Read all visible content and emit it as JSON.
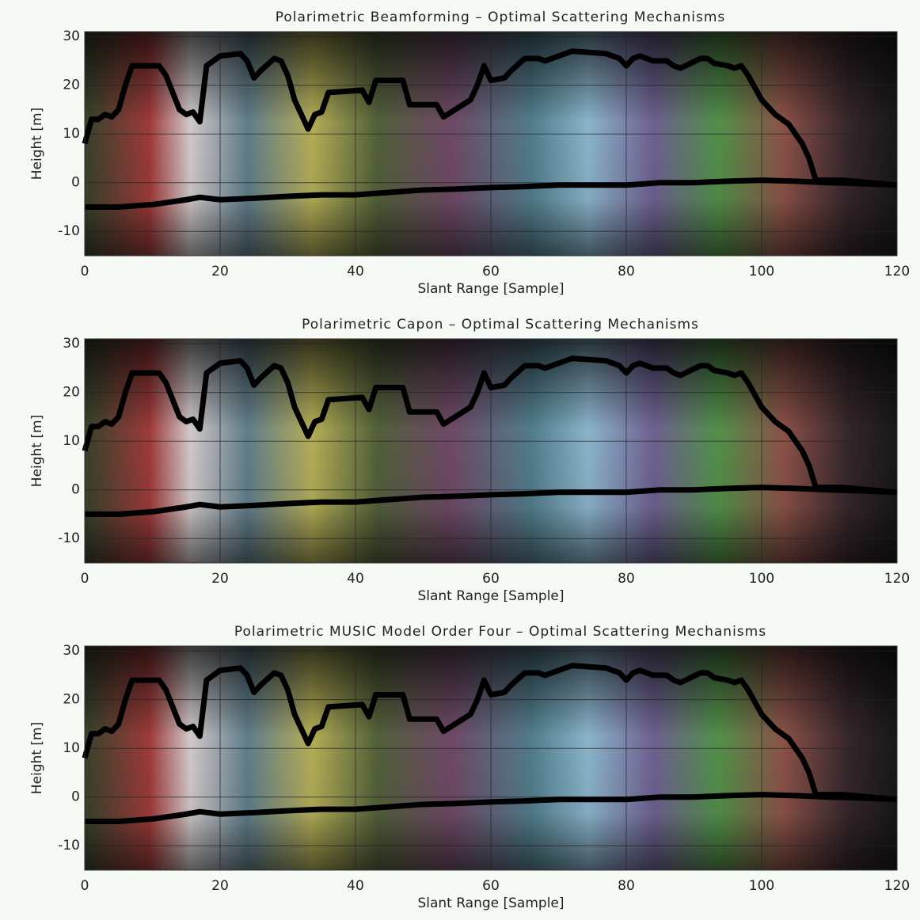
{
  "chart_data": [
    {
      "type": "line",
      "title": "Polarimetric Beamforming – Optimal Scattering Mechanisms",
      "xlabel": "Slant Range [Sample]",
      "ylabel": "Height [m]",
      "xlim": [
        0,
        120
      ],
      "ylim": [
        -15,
        31
      ],
      "xticks": [
        0,
        20,
        40,
        60,
        80,
        100,
        120
      ],
      "yticks": [
        -10,
        0,
        10,
        20,
        30
      ],
      "grid": true,
      "series": [
        {
          "color": "#000000",
          "x": [
            0,
            1,
            2,
            3,
            4,
            5,
            6,
            7,
            11,
            12,
            14,
            15,
            16,
            17,
            18,
            20,
            23,
            24,
            25,
            26,
            28,
            29,
            30,
            31,
            33,
            34,
            35,
            36,
            41,
            42,
            43,
            47,
            48,
            52,
            53,
            57,
            58,
            59,
            60,
            62,
            63,
            65,
            67,
            68,
            72,
            77,
            79,
            80,
            81,
            82,
            84,
            86,
            87,
            88,
            91,
            92,
            93,
            95,
            96,
            97,
            98,
            100,
            102,
            103,
            104,
            105,
            106,
            107,
            108,
            112,
            116,
            120
          ],
          "values": [
            8,
            13,
            13,
            14,
            13.5,
            15,
            20,
            24,
            24,
            22,
            15,
            14,
            14.5,
            12.5,
            24,
            26,
            26.5,
            25,
            21.5,
            23,
            25.5,
            25,
            22,
            17,
            11,
            14,
            14.5,
            18.5,
            19,
            16.5,
            21,
            21,
            16,
            16,
            13.5,
            17,
            20,
            24,
            21,
            21.5,
            23,
            25.5,
            25.5,
            25,
            27,
            26.5,
            25.5,
            24,
            25.5,
            26,
            25,
            25,
            24,
            23.5,
            25.5,
            25.5,
            24.5,
            24,
            23.5,
            24,
            22,
            17,
            14,
            13,
            12,
            10,
            8,
            5,
            0.5,
            0.5,
            0,
            -0.5
          ]
        },
        {
          "color": "#000000",
          "x": [
            0,
            5,
            10,
            15,
            17,
            20,
            25,
            30,
            35,
            40,
            45,
            50,
            55,
            60,
            65,
            70,
            75,
            80,
            85,
            90,
            95,
            100,
            105,
            110,
            115,
            120
          ],
          "values": [
            -5,
            -5,
            -4.5,
            -3.5,
            -3,
            -3.5,
            -3.2,
            -2.8,
            -2.5,
            -2.5,
            -2,
            -1.5,
            -1.3,
            -1,
            -0.8,
            -0.5,
            -0.5,
            -0.5,
            0,
            0,
            0.3,
            0.5,
            0.3,
            0,
            -0.2,
            -0.5
          ]
        }
      ]
    },
    {
      "type": "line",
      "title": "Polarimetric Capon – Optimal Scattering Mechanisms",
      "xlabel": "Slant Range [Sample]",
      "ylabel": "Height [m]",
      "xlim": [
        0,
        120
      ],
      "ylim": [
        -15,
        31
      ],
      "xticks": [
        0,
        20,
        40,
        60,
        80,
        100,
        120
      ],
      "yticks": [
        -10,
        0,
        10,
        20,
        30
      ],
      "grid": true,
      "series": [
        {
          "color": "#000000",
          "x": [
            0,
            1,
            2,
            3,
            4,
            5,
            6,
            7,
            11,
            12,
            14,
            15,
            16,
            17,
            18,
            20,
            23,
            24,
            25,
            26,
            28,
            29,
            30,
            31,
            33,
            34,
            35,
            36,
            41,
            42,
            43,
            47,
            48,
            52,
            53,
            57,
            58,
            59,
            60,
            62,
            63,
            65,
            67,
            68,
            72,
            77,
            79,
            80,
            81,
            82,
            84,
            86,
            87,
            88,
            91,
            92,
            93,
            95,
            96,
            97,
            98,
            100,
            102,
            103,
            104,
            105,
            106,
            107,
            108,
            112,
            116,
            120
          ],
          "values": [
            8,
            13,
            13,
            14,
            13.5,
            15,
            20,
            24,
            24,
            22,
            15,
            14,
            14.5,
            12.5,
            24,
            26,
            26.5,
            25,
            21.5,
            23,
            25.5,
            25,
            22,
            17,
            11,
            14,
            14.5,
            18.5,
            19,
            16.5,
            21,
            21,
            16,
            16,
            13.5,
            17,
            20,
            24,
            21,
            21.5,
            23,
            25.5,
            25.5,
            25,
            27,
            26.5,
            25.5,
            24,
            25.5,
            26,
            25,
            25,
            24,
            23.5,
            25.5,
            25.5,
            24.5,
            24,
            23.5,
            24,
            22,
            17,
            14,
            13,
            12,
            10,
            8,
            5,
            0.5,
            0.5,
            0,
            -0.5
          ]
        },
        {
          "color": "#000000",
          "x": [
            0,
            5,
            10,
            15,
            17,
            20,
            25,
            30,
            35,
            40,
            45,
            50,
            55,
            60,
            65,
            70,
            75,
            80,
            85,
            90,
            95,
            100,
            105,
            110,
            115,
            120
          ],
          "values": [
            -5,
            -5,
            -4.5,
            -3.5,
            -3,
            -3.5,
            -3.2,
            -2.8,
            -2.5,
            -2.5,
            -2,
            -1.5,
            -1.3,
            -1,
            -0.8,
            -0.5,
            -0.5,
            -0.5,
            0,
            0,
            0.3,
            0.5,
            0.3,
            0,
            -0.2,
            -0.5
          ]
        }
      ]
    },
    {
      "type": "line",
      "title": "Polarimetric MUSIC Model Order Four – Optimal Scattering Mechanisms",
      "xlabel": "Slant Range [Sample]",
      "ylabel": "Height [m]",
      "xlim": [
        0,
        120
      ],
      "ylim": [
        -15,
        31
      ],
      "xticks": [
        0,
        20,
        40,
        60,
        80,
        100,
        120
      ],
      "yticks": [
        -10,
        0,
        10,
        20,
        30
      ],
      "grid": true,
      "series": [
        {
          "color": "#000000",
          "x": [
            0,
            1,
            2,
            3,
            4,
            5,
            6,
            7,
            11,
            12,
            14,
            15,
            16,
            17,
            18,
            20,
            23,
            24,
            25,
            26,
            28,
            29,
            30,
            31,
            33,
            34,
            35,
            36,
            41,
            42,
            43,
            47,
            48,
            52,
            53,
            57,
            58,
            59,
            60,
            62,
            63,
            65,
            67,
            68,
            72,
            77,
            79,
            80,
            81,
            82,
            84,
            86,
            87,
            88,
            91,
            92,
            93,
            95,
            96,
            97,
            98,
            100,
            102,
            103,
            104,
            105,
            106,
            107,
            108,
            112,
            116,
            120
          ],
          "values": [
            8,
            13,
            13,
            14,
            13.5,
            15,
            20,
            24,
            24,
            22,
            15,
            14,
            14.5,
            12.5,
            24,
            26,
            26.5,
            25,
            21.5,
            23,
            25.5,
            25,
            22,
            17,
            11,
            14,
            14.5,
            18.5,
            19,
            16.5,
            21,
            21,
            16,
            16,
            13.5,
            17,
            20,
            24,
            21,
            21.5,
            23,
            25.5,
            25.5,
            25,
            27,
            26.5,
            25.5,
            24,
            25.5,
            26,
            25,
            25,
            24,
            23.5,
            25.5,
            25.5,
            24.5,
            24,
            23.5,
            24,
            22,
            17,
            14,
            13,
            12,
            10,
            8,
            5,
            0.5,
            0.5,
            0,
            -0.5
          ]
        },
        {
          "color": "#000000",
          "x": [
            0,
            5,
            10,
            15,
            17,
            20,
            25,
            30,
            35,
            40,
            45,
            50,
            55,
            60,
            65,
            70,
            75,
            80,
            85,
            90,
            95,
            100,
            105,
            110,
            115,
            120
          ],
          "values": [
            -5,
            -5,
            -4.5,
            -3.5,
            -3,
            -3.5,
            -3.2,
            -2.8,
            -2.5,
            -2.5,
            -2,
            -1.5,
            -1.3,
            -1,
            -0.8,
            -0.5,
            -0.5,
            -0.5,
            0,
            0,
            0.3,
            0.5,
            0.3,
            0,
            -0.2,
            -0.5
          ]
        }
      ]
    }
  ]
}
